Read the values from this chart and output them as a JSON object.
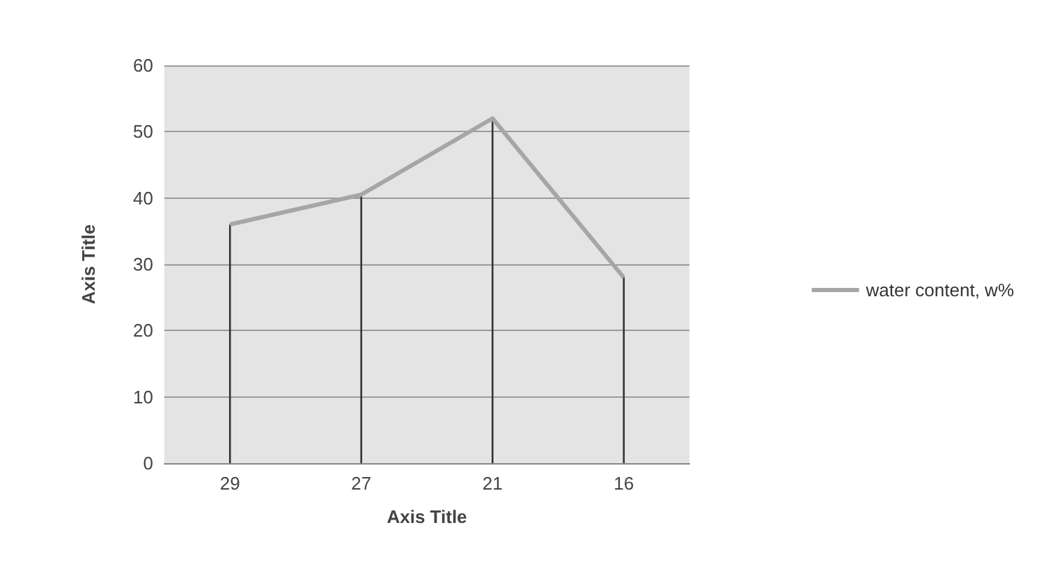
{
  "chart_data": {
    "type": "line",
    "xlabel": "Axis Title",
    "ylabel": "Axis Title",
    "categories": [
      "29",
      "27",
      "21",
      "16"
    ],
    "series": [
      {
        "name": "water content, w%",
        "color": "#a6a6a6",
        "values": [
          36,
          40.5,
          52,
          28
        ]
      },
      {
        "type": "bar",
        "color": "#333333",
        "values": [
          36,
          40.5,
          52,
          28
        ]
      }
    ],
    "ylim": [
      0,
      60
    ],
    "yticks": [
      0,
      10,
      20,
      30,
      40,
      50,
      60
    ],
    "grid": "y",
    "legend": "right",
    "marker": "none"
  }
}
